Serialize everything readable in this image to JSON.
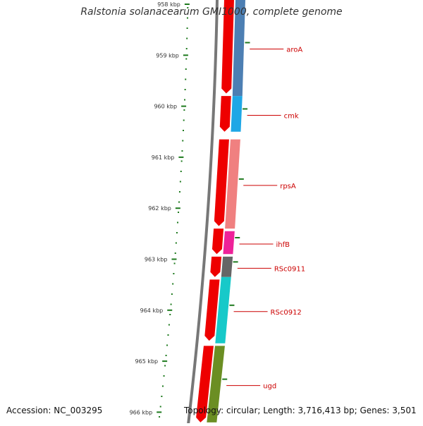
{
  "title": "Ralstonia solanacearum GMI1000, complete genome",
  "footer": {
    "accession": "Accession: NC_003295",
    "summary": "Topology: circular; Length: 3,716,413 bp; Genes: 3,501"
  },
  "ruler": {
    "ticks": [
      {
        "label": "958 kbp",
        "kbp": 958
      },
      {
        "label": "959 kbp",
        "kbp": 959
      },
      {
        "label": "960 kbp",
        "kbp": 960
      },
      {
        "label": "961 kbp",
        "kbp": 961
      },
      {
        "label": "962 kbp",
        "kbp": 962
      },
      {
        "label": "963 kbp",
        "kbp": 963
      },
      {
        "label": "964 kbp",
        "kbp": 964
      },
      {
        "label": "965 kbp",
        "kbp": 965
      },
      {
        "label": "966 kbp",
        "kbp": 966
      }
    ],
    "color": "#1e7a1e"
  },
  "colors": {
    "cds": "#ee0000",
    "backbone": "#777777",
    "label": "#cc0000"
  },
  "features": [
    {
      "label": "aroA",
      "start_kbp": 957.9,
      "end_kbp": 959.8,
      "color": "#4d7fb3"
    },
    {
      "label": "cmk",
      "start_kbp": 959.8,
      "end_kbp": 960.5,
      "color": "#1fa7e6"
    },
    {
      "label": "rpsA",
      "start_kbp": 960.65,
      "end_kbp": 962.4,
      "color": "#f08080"
    },
    {
      "label": "ihfB",
      "start_kbp": 962.45,
      "end_kbp": 962.9,
      "color": "#ee2299"
    },
    {
      "label": "RSc0911",
      "start_kbp": 962.95,
      "end_kbp": 963.35,
      "color": "#666666"
    },
    {
      "label": "RSc0912",
      "start_kbp": 963.35,
      "end_kbp": 964.65,
      "color": "#17c9c9"
    },
    {
      "label": "ugd",
      "start_kbp": 964.7,
      "end_kbp": 966.2,
      "color": "#6b8e23"
    }
  ],
  "cds_blocks": [
    {
      "start_kbp": 957.9,
      "end_kbp": 959.75
    },
    {
      "start_kbp": 959.8,
      "end_kbp": 960.5
    },
    {
      "start_kbp": 960.65,
      "end_kbp": 962.35
    },
    {
      "start_kbp": 962.4,
      "end_kbp": 962.9
    },
    {
      "start_kbp": 962.95,
      "end_kbp": 963.35
    },
    {
      "start_kbp": 963.4,
      "end_kbp": 964.6
    },
    {
      "start_kbp": 964.7,
      "end_kbp": 966.2
    }
  ]
}
